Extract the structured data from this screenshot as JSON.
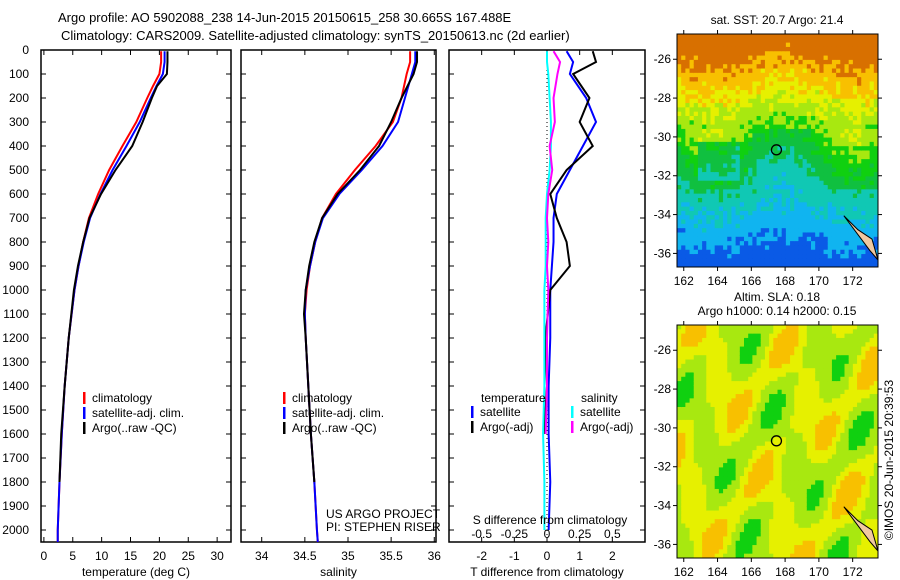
{
  "title_line1": "Argo profile: AO 5902088_238 14-Jun-2015 20150615_258 30.665S 167.488E",
  "title_line2": "Climatology: CARS2009. Satellite-adjusted climatology: synTS_20150613.nc (2d earlier)",
  "timestamp": "©IMOS 20-Jun-2015 20:39:53",
  "colors": {
    "clim": "#ff0000",
    "sat": "#0000ff",
    "argo": "#000000",
    "sal_sat": "#00ffff",
    "sal_argo": "#ff00ff"
  },
  "chart_data": [
    {
      "type": "line",
      "id": "temp",
      "xlabel": "temperature (deg C)",
      "xlim": [
        -0.5,
        32.4
      ],
      "ylim": [
        0,
        2050
      ],
      "xticks": [
        0,
        5,
        10,
        15,
        20,
        25,
        30
      ],
      "yticks": [
        0,
        100,
        200,
        300,
        400,
        500,
        600,
        700,
        800,
        900,
        1000,
        1100,
        1200,
        1300,
        1400,
        1500,
        1600,
        1700,
        1800,
        1900,
        2000
      ],
      "legend": [
        "climatology",
        "satellite-adj. clim.",
        "Argo(..raw -QC)"
      ],
      "depth": [
        5,
        50,
        100,
        150,
        200,
        300,
        400,
        500,
        600,
        700,
        800,
        900,
        1000,
        1200,
        1400,
        1600,
        1800,
        2000,
        2050
      ],
      "series": [
        {
          "name": "climatology",
          "values": [
            20.3,
            20.3,
            20.0,
            18.9,
            17.9,
            16.0,
            13.6,
            11.3,
            9.4,
            7.8,
            6.8,
            6.0,
            5.3,
            4.3,
            3.6,
            3.1,
            2.7,
            2.4,
            2.4
          ]
        },
        {
          "name": "satellite-adj. clim.",
          "values": [
            20.9,
            20.9,
            20.6,
            19.5,
            18.5,
            16.6,
            14.3,
            11.9,
            9.8,
            8.0,
            6.9,
            6.0,
            5.3,
            4.3,
            3.6,
            3.1,
            2.7,
            2.4,
            2.4
          ]
        },
        {
          "name": "Argo(..raw -QC)",
          "values": [
            21.4,
            21.4,
            21.3,
            19.6,
            18.7,
            17.1,
            15.3,
            12.4,
            9.9,
            7.9,
            6.8,
            5.9,
            5.2,
            4.3,
            3.6,
            3.0,
            2.7
          ]
        }
      ],
      "annotation": null
    },
    {
      "type": "line",
      "id": "sal",
      "xlabel": "salinity",
      "xlim": [
        33.76,
        36.02
      ],
      "ylim": [
        0,
        2050
      ],
      "xticks": [
        34,
        34.5,
        35,
        35.5,
        36
      ],
      "legend": [
        "climatology",
        "satellite-adj. clim.",
        "Argo(..raw -QC)"
      ],
      "depth": [
        5,
        50,
        100,
        200,
        300,
        400,
        500,
        600,
        700,
        800,
        900,
        1000,
        1100,
        1200,
        1400,
        1600,
        1800,
        2000,
        2050
      ],
      "series": [
        {
          "name": "climatology",
          "values": [
            35.72,
            35.72,
            35.68,
            35.62,
            35.52,
            35.32,
            35.08,
            34.86,
            34.7,
            34.62,
            34.56,
            34.52,
            34.5,
            34.51,
            34.54,
            34.57,
            34.61,
            34.64,
            34.65
          ]
        },
        {
          "name": "satellite-adj. clim.",
          "values": [
            35.78,
            35.78,
            35.74,
            35.66,
            35.58,
            35.4,
            35.16,
            34.9,
            34.71,
            34.62,
            34.56,
            34.51,
            34.5,
            34.51,
            34.54,
            34.57,
            34.61,
            34.64,
            34.65
          ]
        },
        {
          "name": "Argo(..raw -QC)",
          "values": [
            35.8,
            35.8,
            35.76,
            35.62,
            35.5,
            35.36,
            35.14,
            34.88,
            34.7,
            34.61,
            34.55,
            34.51,
            34.49,
            34.51,
            34.54,
            34.57,
            34.61
          ]
        }
      ],
      "annotation": [
        "US ARGO PROJECT",
        "PI: STEPHEN RISER"
      ]
    },
    {
      "type": "line",
      "id": "diff",
      "xlabel": "T difference from climatology",
      "x2label": "S difference from climatology",
      "xlim": [
        -3,
        3
      ],
      "xticks": [
        -2,
        -1,
        0,
        1,
        2
      ],
      "x2ticks": [
        -0.5,
        -0.25,
        0,
        0.25,
        0.5
      ],
      "x2tick_labels": [
        "-0.5",
        "-0.25",
        "0",
        "0.25",
        "0.5"
      ],
      "ylim": [
        0,
        2050
      ],
      "legend_T_title": "temperature",
      "legend_S_title": "salinity",
      "legend": [
        "satellite",
        "Argo(-adj)",
        "satellite",
        "Argo(-adj)"
      ],
      "depth": [
        5,
        50,
        100,
        200,
        300,
        400,
        500,
        600,
        700,
        800,
        900,
        1000,
        1200,
        1400,
        1600,
        1800,
        2000
      ],
      "series": [
        {
          "name": "T satellite",
          "values": [
            0.6,
            0.8,
            0.7,
            1.2,
            1.5,
            1.1,
            0.7,
            0.3,
            0.2,
            0.2,
            0.15,
            0.1,
            0.1,
            0.05,
            0.05,
            0.1,
            0.05
          ]
        },
        {
          "name": "T Argo(-adj)",
          "values": [
            1.4,
            1.5,
            0.8,
            1.3,
            1.0,
            1.4,
            0.6,
            0.1,
            0.3,
            0.6,
            0.7,
            0.1,
            -0.05,
            0.0,
            -0.1
          ]
        },
        {
          "name": "S satellite",
          "values": [
            0.0,
            0.0,
            0.01,
            0.02,
            0.03,
            0.03,
            0.02,
            0.0,
            -0.01,
            -0.01,
            -0.01,
            -0.02,
            -0.02,
            -0.02,
            -0.03,
            -0.02,
            -0.02
          ]
        },
        {
          "name": "S Argo(-adj)",
          "values": [
            0.05,
            0.1,
            0.08,
            0.05,
            0.06,
            0.02,
            0.04,
            0.01,
            0.0,
            0.01,
            0.0,
            0.01,
            0.0,
            0.0,
            -0.01
          ]
        }
      ]
    },
    {
      "type": "heatmap",
      "id": "sst",
      "title": "sat. SST: 20.7 Argo: 21.4",
      "xticks": [
        162,
        164,
        166,
        168,
        170,
        172
      ],
      "yticks": [
        -26,
        -28,
        -30,
        -32,
        -34,
        -36
      ],
      "xlim": [
        161.6,
        173.5
      ],
      "ylim": [
        -36.7,
        -24.7
      ],
      "marker": [
        167.488,
        -30.665
      ]
    },
    {
      "type": "heatmap",
      "id": "sla",
      "title1": "Altim. SLA: 0.18",
      "title2": "Argo h1000: 0.14 h2000: 0.15",
      "xticks": [
        162,
        164,
        166,
        168,
        170,
        172
      ],
      "yticks": [
        -26,
        -28,
        -30,
        -32,
        -34,
        -36
      ],
      "xlim": [
        161.6,
        173.5
      ],
      "ylim": [
        -36.7,
        -24.7
      ],
      "marker": [
        167.488,
        -30.665
      ]
    }
  ]
}
